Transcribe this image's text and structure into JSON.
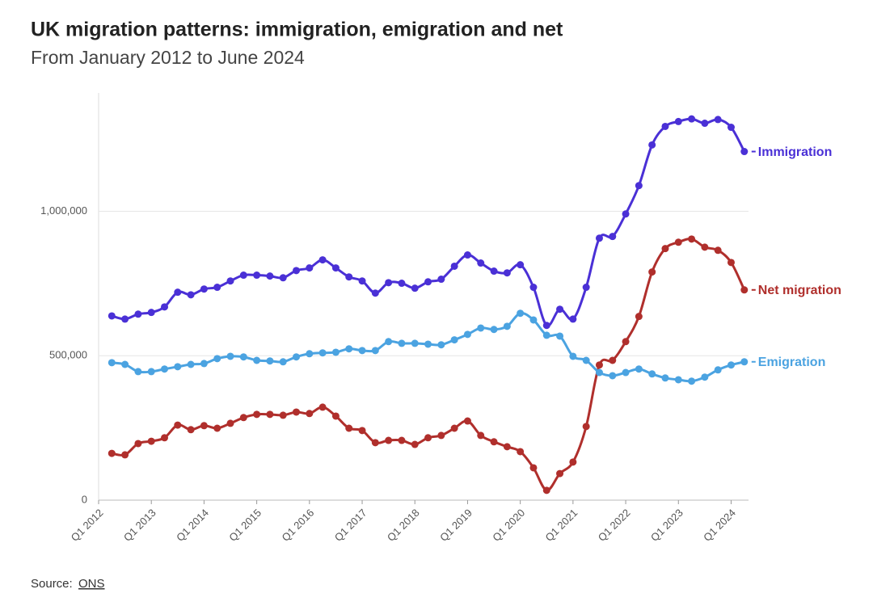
{
  "chart_data": {
    "type": "line",
    "title": "UK migration patterns: immigration, emigration and net",
    "subtitle": "From January 2012 to June 2024",
    "source": "Source:",
    "source_link": "ONS",
    "x": [
      2012.25,
      2012.5,
      2012.75,
      2013,
      2013.25,
      2013.5,
      2013.75,
      2014,
      2014.25,
      2014.5,
      2014.75,
      2015,
      2015.25,
      2015.5,
      2015.75,
      2016,
      2016.25,
      2016.5,
      2016.75,
      2017,
      2017.25,
      2017.5,
      2017.75,
      2018,
      2018.25,
      2018.5,
      2018.75,
      2019,
      2019.25,
      2019.5,
      2019.75,
      2020,
      2020.25,
      2020.5,
      2020.75,
      2021,
      2021.25,
      2021.5,
      2021.75,
      2022,
      2022.25,
      2022.5,
      2022.75,
      2023,
      2023.25,
      2023.5,
      2023.75,
      2024,
      2024.25
    ],
    "xlim": [
      2012,
      2024.33
    ],
    "xticks": [
      {
        "value": 2012,
        "label": "Q1 2012"
      },
      {
        "value": 2013,
        "label": "Q1 2013"
      },
      {
        "value": 2014,
        "label": "Q1 2014"
      },
      {
        "value": 2015,
        "label": "Q1 2015"
      },
      {
        "value": 2016,
        "label": "Q1 2016"
      },
      {
        "value": 2017,
        "label": "Q1 2017"
      },
      {
        "value": 2018,
        "label": "Q1 2018"
      },
      {
        "value": 2019,
        "label": "Q1 2019"
      },
      {
        "value": 2020,
        "label": "Q1 2020"
      },
      {
        "value": 2021,
        "label": "Q1 2021"
      },
      {
        "value": 2022,
        "label": "Q1 2022"
      },
      {
        "value": 2023,
        "label": "Q1 2023"
      },
      {
        "value": 2024,
        "label": "Q1 2024"
      }
    ],
    "ylim": [
      0,
      1410000
    ],
    "yticks": [
      0,
      {
        "value": 500000,
        "label": "500,000"
      },
      {
        "value": 1000000,
        "label": "1,000,000"
      }
    ],
    "grid": true,
    "series": [
      {
        "name": "Immigration",
        "color": "#4a30d6",
        "values": [
          638000,
          627000,
          644000,
          650000,
          669000,
          720000,
          711000,
          731000,
          737000,
          759000,
          779000,
          779000,
          776000,
          770000,
          795000,
          804000,
          832000,
          804000,
          773000,
          759000,
          717000,
          753000,
          751000,
          734000,
          756000,
          765000,
          810000,
          849000,
          821000,
          793000,
          787000,
          815000,
          737000,
          605000,
          661000,
          627000,
          737000,
          907000,
          913000,
          991000,
          1089000,
          1230000,
          1294000,
          1311000,
          1320000,
          1305000,
          1318000,
          1291000,
          1207000
        ]
      },
      {
        "name": "Net migration",
        "color": "#b02f2c",
        "values": [
          162000,
          157000,
          196000,
          204000,
          216000,
          260000,
          244000,
          258000,
          249000,
          266000,
          286000,
          297000,
          297000,
          294000,
          305000,
          300000,
          322000,
          291000,
          249000,
          241000,
          199000,
          207000,
          207000,
          193000,
          216000,
          224000,
          249000,
          274000,
          224000,
          202000,
          185000,
          168000,
          112000,
          34000,
          92000,
          132000,
          255000,
          468000,
          484000,
          549000,
          636000,
          790000,
          871000,
          893000,
          904000,
          876000,
          865000,
          823000,
          728000
        ]
      },
      {
        "name": "Emigration",
        "color": "#4ba3e1",
        "values": [
          476000,
          470000,
          445000,
          445000,
          454000,
          462000,
          470000,
          473000,
          490000,
          498000,
          496000,
          484000,
          482000,
          479000,
          496000,
          507000,
          510000,
          512000,
          524000,
          518000,
          518000,
          549000,
          543000,
          543000,
          540000,
          538000,
          555000,
          574000,
          596000,
          591000,
          602000,
          647000,
          624000,
          571000,
          568000,
          498000,
          484000,
          442000,
          431000,
          442000,
          454000,
          437000,
          423000,
          417000,
          412000,
          426000,
          451000,
          468000,
          479000
        ]
      }
    ]
  }
}
